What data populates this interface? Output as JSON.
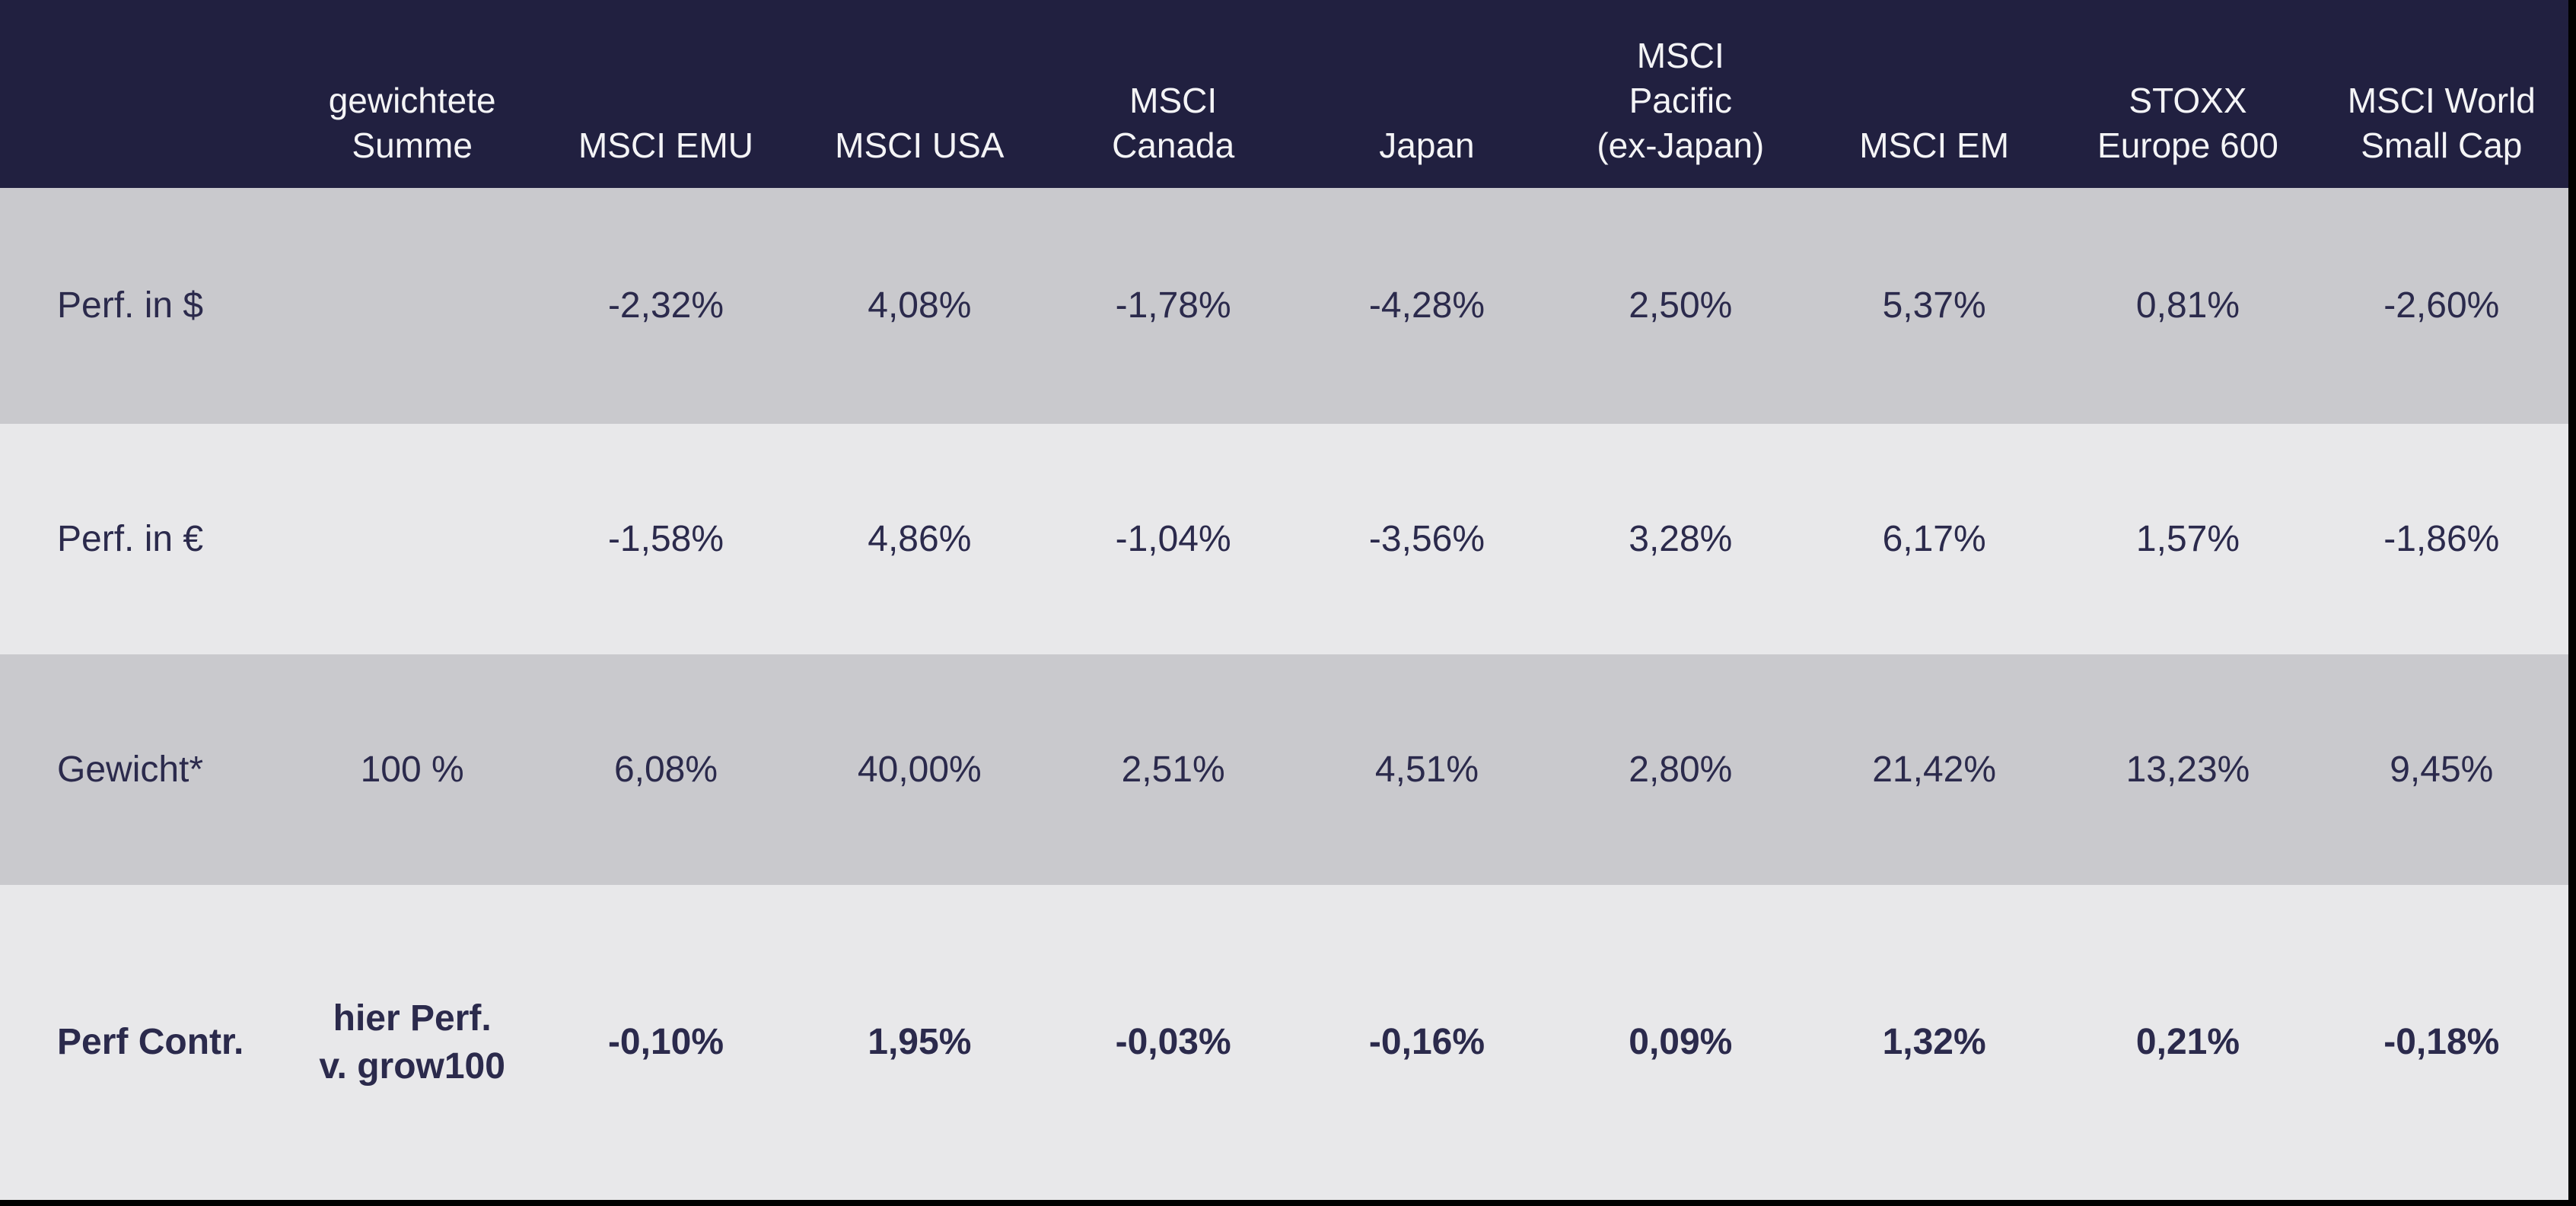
{
  "colors": {
    "header_background": "#212040",
    "header_text": "#F4F4F6",
    "row_gray": "#C9C9CD",
    "row_light": "#E8E8EA",
    "value_text": "#2B2A4C",
    "page_background": "#000000"
  },
  "chart_data": {
    "type": "table",
    "title": "",
    "columns": [
      "",
      "gewichtete\nSumme",
      "MSCI EMU",
      "MSCI USA",
      "MSCI\nCanada",
      "Japan",
      "MSCI\nPacific\n(ex-Japan)",
      "MSCI EM",
      "STOXX\nEurope 600",
      "MSCI World\nSmall Cap"
    ],
    "rows": [
      {
        "label": "Perf. in $",
        "values": [
          "",
          "-2,32%",
          "4,08%",
          "-1,78%",
          "-4,28%",
          "2,50%",
          "5,37%",
          "0,81%",
          "-2,60%"
        ]
      },
      {
        "label": "Perf. in €",
        "values": [
          "",
          "-1,58%",
          "4,86%",
          "-1,04%",
          "-3,56%",
          "3,28%",
          "6,17%",
          "1,57%",
          "-1,86%"
        ]
      },
      {
        "label": "Gewicht*",
        "values": [
          "100 %",
          "6,08%",
          "40,00%",
          "2,51%",
          "4,51%",
          "2,80%",
          "21,42%",
          "13,23%",
          "9,45%"
        ]
      },
      {
        "label": "Perf Contr.",
        "values": [
          "hier Perf.\nv. grow100",
          "-0,10%",
          "1,95%",
          "-0,03%",
          "-0,16%",
          "0,09%",
          "1,32%",
          "0,21%",
          "-0,18%"
        ]
      }
    ]
  }
}
